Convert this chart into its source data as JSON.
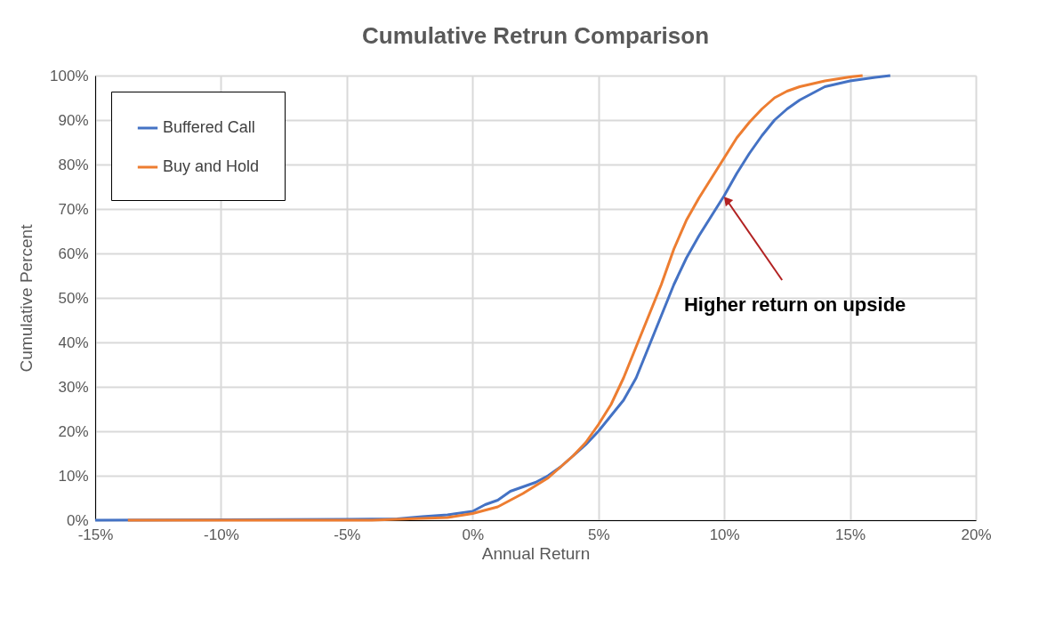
{
  "chart_data": {
    "type": "line",
    "title": "Cumulative Retrun Comparison",
    "xlabel": "Annual Return",
    "ylabel": "Cumulative Percent",
    "series": [
      {
        "name": "Buffered Call",
        "color": "#4472c4",
        "x": [
          -15,
          -5,
          -3,
          -2,
          -1,
          0,
          0.5,
          1,
          1.5,
          2,
          2.5,
          3,
          3.5,
          4,
          4.5,
          5,
          5.5,
          6,
          6.5,
          7,
          7.5,
          8,
          8.5,
          9,
          9.5,
          10,
          10.5,
          11,
          11.5,
          12,
          12.5,
          13,
          13.5,
          14,
          15,
          15.5,
          16,
          16.6
        ],
        "values": [
          0,
          0.2,
          0.3,
          0.8,
          1.2,
          2,
          3.5,
          4.5,
          6.5,
          7.5,
          8.5,
          10,
          12,
          14.5,
          17,
          20,
          23.5,
          27,
          32,
          39,
          46,
          53,
          59,
          64,
          68.5,
          73,
          78,
          82.5,
          86.5,
          90,
          92.5,
          94.5,
          96,
          97.5,
          98.8,
          99.2,
          99.6,
          100
        ]
      },
      {
        "name": "Buy and Hold",
        "color": "#ed7d31",
        "x": [
          -13.7,
          -4,
          -3,
          -2,
          -1,
          0,
          1,
          2,
          3,
          4,
          4.5,
          5,
          5.5,
          6,
          6.5,
          7,
          7.5,
          8,
          8.5,
          9,
          9.5,
          10,
          10.5,
          11,
          11.5,
          12,
          12.5,
          13,
          14,
          15,
          15.5
        ],
        "values": [
          0,
          0,
          0.2,
          0.4,
          0.6,
          1.5,
          3,
          6,
          9.5,
          14.5,
          17.5,
          21.5,
          26,
          32,
          39,
          46,
          53,
          61,
          67.5,
          72.5,
          77,
          81.5,
          86,
          89.5,
          92.5,
          95,
          96.5,
          97.5,
          98.8,
          99.7,
          100
        ]
      }
    ],
    "xlim": [
      -15,
      20
    ],
    "ylim": [
      0,
      100
    ],
    "xticks": [
      {
        "value": -15,
        "label": "-15%"
      },
      {
        "value": -10,
        "label": "-10%"
      },
      {
        "value": -5,
        "label": "-5%"
      },
      {
        "value": 0,
        "label": "0%"
      },
      {
        "value": 5,
        "label": "5%"
      },
      {
        "value": 10,
        "label": "10%"
      },
      {
        "value": 15,
        "label": "15%"
      },
      {
        "value": 20,
        "label": "20%"
      }
    ],
    "yticks": [
      {
        "value": 0,
        "label": "0%"
      },
      {
        "value": 10,
        "label": "10%"
      },
      {
        "value": 20,
        "label": "20%"
      },
      {
        "value": 30,
        "label": "30%"
      },
      {
        "value": 40,
        "label": "40%"
      },
      {
        "value": 50,
        "label": "50%"
      },
      {
        "value": 60,
        "label": "60%"
      },
      {
        "value": 70,
        "label": "70%"
      },
      {
        "value": 80,
        "label": "80%"
      },
      {
        "value": 90,
        "label": "90%"
      },
      {
        "value": 100,
        "label": "100%"
      }
    ],
    "annotations": [
      {
        "text": "Higher return on upside",
        "x": 10.1,
        "y": 72
      }
    ],
    "grid": true,
    "legend": "top left",
    "marker": "none",
    "line_style": "solid"
  }
}
